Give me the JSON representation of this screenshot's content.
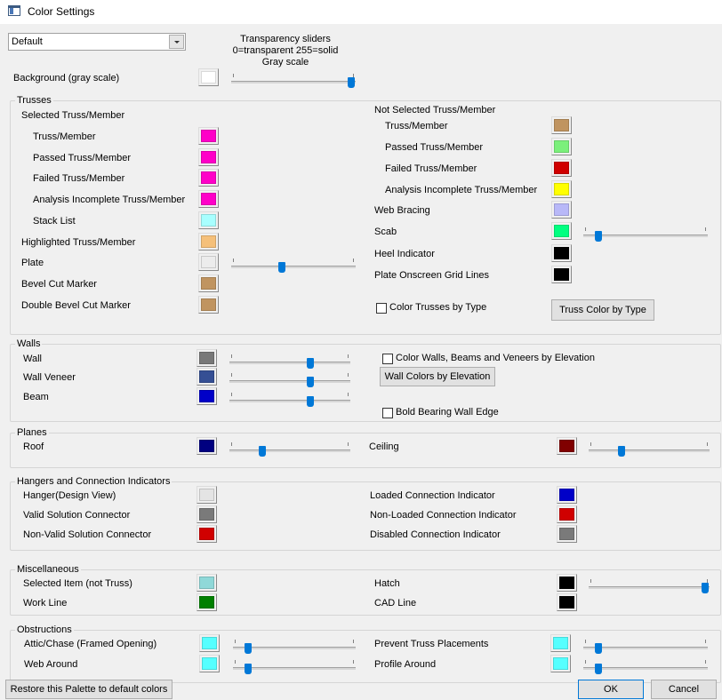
{
  "window": {
    "title": "Color Settings"
  },
  "palette_select": {
    "value": "Default"
  },
  "hint_lines": [
    "Transparency sliders",
    "0=transparent 255=solid",
    "Gray scale"
  ],
  "background": {
    "label": "Background (gray scale)",
    "color": "#ffffff",
    "slider": 0.99
  },
  "trusses": {
    "title": "Trusses",
    "selected_heading": "Selected Truss/Member",
    "not_selected_heading": "Not Selected Truss/Member",
    "left": [
      {
        "key": "sel-truss-member",
        "label": "Truss/Member",
        "color": "#ff00c8"
      },
      {
        "key": "sel-passed",
        "label": "Passed Truss/Member",
        "color": "#ff00c8"
      },
      {
        "key": "sel-failed",
        "label": "Failed Truss/Member",
        "color": "#ff00c8"
      },
      {
        "key": "sel-analysis-incomplete",
        "label": "Analysis Incomplete Truss/Member",
        "color": "#ff00c8"
      },
      {
        "key": "stack-list",
        "label": "Stack List",
        "color": "#a8ffff"
      },
      {
        "key": "highlighted",
        "label": "Highlighted Truss/Member",
        "color": "#f5c07a"
      },
      {
        "key": "plate",
        "label": "Plate",
        "color": "#ececec",
        "slider": 0.4
      },
      {
        "key": "bevel-cut",
        "label": "Bevel Cut Marker",
        "color": "#c09460"
      },
      {
        "key": "double-bevel-cut",
        "label": "Double Bevel Cut Marker",
        "color": "#c09460"
      }
    ],
    "right": [
      {
        "key": "notsel-truss-member",
        "label": "Truss/Member",
        "color": "#c09460"
      },
      {
        "key": "notsel-passed",
        "label": "Passed Truss/Member",
        "color": "#7bf07b"
      },
      {
        "key": "notsel-failed",
        "label": "Failed Truss/Member",
        "color": "#d00000"
      },
      {
        "key": "notsel-analysis-incomplete",
        "label": "Analysis Incomplete Truss/Member",
        "color": "#ffff00"
      },
      {
        "key": "web-bracing",
        "label": "Web Bracing",
        "color": "#b8b8f8"
      },
      {
        "key": "scab",
        "label": "Scab",
        "color": "#00ff80",
        "slider": 0.1
      },
      {
        "key": "heel-indicator",
        "label": "Heel Indicator",
        "color": "#000000"
      },
      {
        "key": "plate-grid-lines",
        "label": "Plate Onscreen Grid Lines",
        "color": "#000000"
      }
    ],
    "color_by_type_label": "Color Trusses by Type",
    "color_by_type_button": "Truss Color by Type"
  },
  "walls": {
    "title": "Walls",
    "rows": [
      {
        "key": "wall",
        "label": "Wall",
        "color": "#787878",
        "slider": 0.68
      },
      {
        "key": "wall-veneer",
        "label": "Wall Veneer",
        "color": "#354f94",
        "slider": 0.68
      },
      {
        "key": "beam",
        "label": "Beam",
        "color": "#0000c8",
        "slider": 0.68
      }
    ],
    "elevation_checkbox": "Color Walls, Beams and Veneers by Elevation",
    "elevation_button": "Wall Colors by Elevation",
    "bold_edge_checkbox": "Bold Bearing Wall Edge"
  },
  "planes": {
    "title": "Planes",
    "roof": {
      "label": "Roof",
      "color": "#000080",
      "slider": 0.26
    },
    "ceiling": {
      "label": "Ceiling",
      "color": "#800000",
      "slider": 0.26
    }
  },
  "hangers": {
    "title": "Hangers and Connection Indicators",
    "left": [
      {
        "key": "hanger",
        "label": "Hanger(Design View)",
        "color": "#e4e4e4"
      },
      {
        "key": "valid-connector",
        "label": "Valid Solution Connector",
        "color": "#7a7a7a"
      },
      {
        "key": "nonvalid-connector",
        "label": "Non-Valid Solution Connector",
        "color": "#d00000"
      }
    ],
    "right": [
      {
        "key": "loaded-indicator",
        "label": "Loaded Connection Indicator",
        "color": "#0000c8"
      },
      {
        "key": "nonloaded-indicator",
        "label": "Non-Loaded Connection Indicator",
        "color": "#d00000"
      },
      {
        "key": "disabled-indicator",
        "label": "Disabled Connection Indicator",
        "color": "#7a7a7a"
      }
    ]
  },
  "misc": {
    "title": "Miscellaneous",
    "selected_item": {
      "label": "Selected Item (not Truss)",
      "color": "#8fd8d8"
    },
    "work_line": {
      "label": "Work Line",
      "color": "#008000"
    },
    "hatch": {
      "label": "Hatch",
      "color": "#000000",
      "slider": 0.99
    },
    "cad_line": {
      "label": "CAD Line",
      "color": "#000000"
    }
  },
  "obstructions": {
    "title": "Obstructions",
    "attic_chase": {
      "label": "Attic/Chase (Framed Opening)",
      "color": "#55ffff",
      "slider": 0.1
    },
    "web_around": {
      "label": "Web Around",
      "color": "#55ffff",
      "slider": 0.1
    },
    "prevent_truss": {
      "label": "Prevent Truss Placements",
      "color": "#55ffff",
      "slider": 0.1
    },
    "profile_around": {
      "label": "Profile Around",
      "color": "#55ffff",
      "slider": 0.1
    }
  },
  "footer": {
    "restore_button": "Restore this Palette to default colors",
    "ok_button": "OK",
    "cancel_button": "Cancel"
  }
}
